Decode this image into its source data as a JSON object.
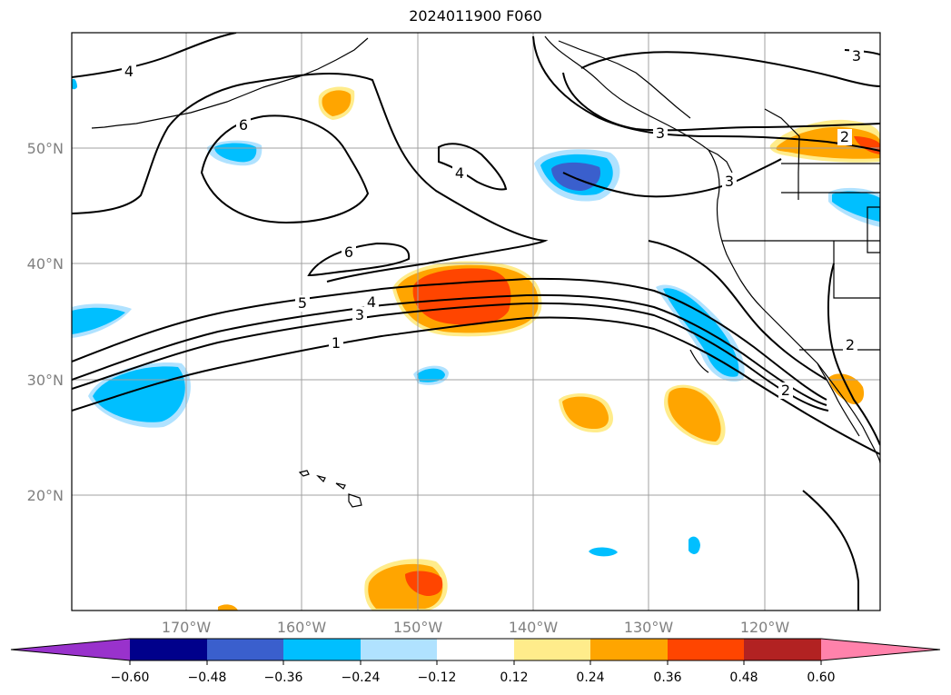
{
  "title": "2024011900 F060",
  "map": {
    "lat_ticks": [
      "50°N",
      "40°N",
      "30°N",
      "20°N"
    ],
    "lon_ticks": [
      "170°W",
      "160°W",
      "150°W",
      "140°W",
      "130°W",
      "120°W"
    ],
    "contour_labels": [
      "4",
      "6",
      "6",
      "4",
      "6",
      "5",
      "4",
      "3",
      "1",
      "3",
      "2",
      "3",
      "2",
      "2",
      "3"
    ]
  },
  "colorbar": {
    "tick_labels": [
      "−0.60",
      "−0.48",
      "−0.36",
      "−0.24",
      "−0.12",
      "0.12",
      "0.24",
      "0.36",
      "0.48",
      "0.60"
    ],
    "colors": [
      "#9932cc",
      "#00008b",
      "#3a5fcd",
      "#00bfff",
      "#b0e2ff",
      "#ffffff",
      "#ffec8b",
      "#ffa500",
      "#ff4500",
      "#b22222",
      "#ff82ab"
    ]
  }
}
